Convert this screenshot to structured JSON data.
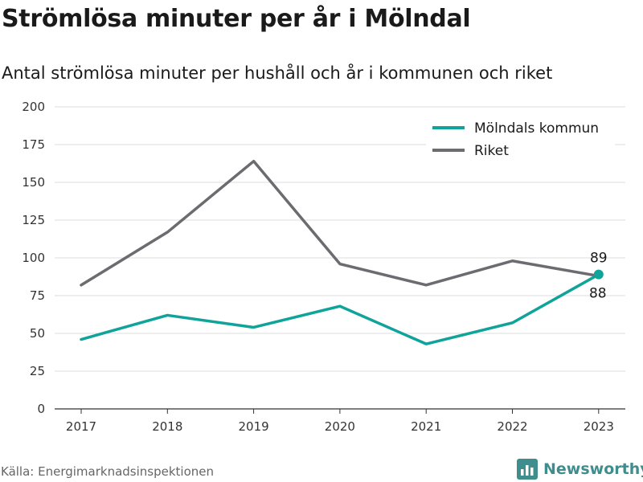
{
  "chart_data": {
    "type": "line",
    "title": "Strömlösa minuter per år i Mölndal",
    "subtitle": "Antal strömlösa minuter per hushåll och år i kommunen och riket",
    "categories": [
      "2017",
      "2018",
      "2019",
      "2020",
      "2021",
      "2022",
      "2023"
    ],
    "ylim": [
      0,
      200
    ],
    "yticks": [
      0,
      25,
      50,
      75,
      100,
      125,
      150,
      175,
      200
    ],
    "ytick_labels": [
      "0",
      "25",
      "50",
      "75",
      "100",
      "125",
      "150",
      "175",
      "200"
    ],
    "grid": true,
    "legend_position": "top-right",
    "series": [
      {
        "name": "Mölndals kommun",
        "color": "#0fa39a",
        "values": [
          46,
          62,
          54,
          68,
          43,
          57,
          89
        ],
        "end_label": "89",
        "end_marker": true
      },
      {
        "name": "Riket",
        "color": "#6b6b70",
        "values": [
          82,
          117,
          164,
          96,
          82,
          98,
          88
        ],
        "end_label": "88",
        "end_marker": false
      }
    ]
  },
  "footer": {
    "source": "Källa: Energimarknadsinspektionen",
    "brand": "Newsworthy",
    "brand_icon": "bar-chart-logo-icon",
    "brand_color": "#3f8d8d"
  }
}
